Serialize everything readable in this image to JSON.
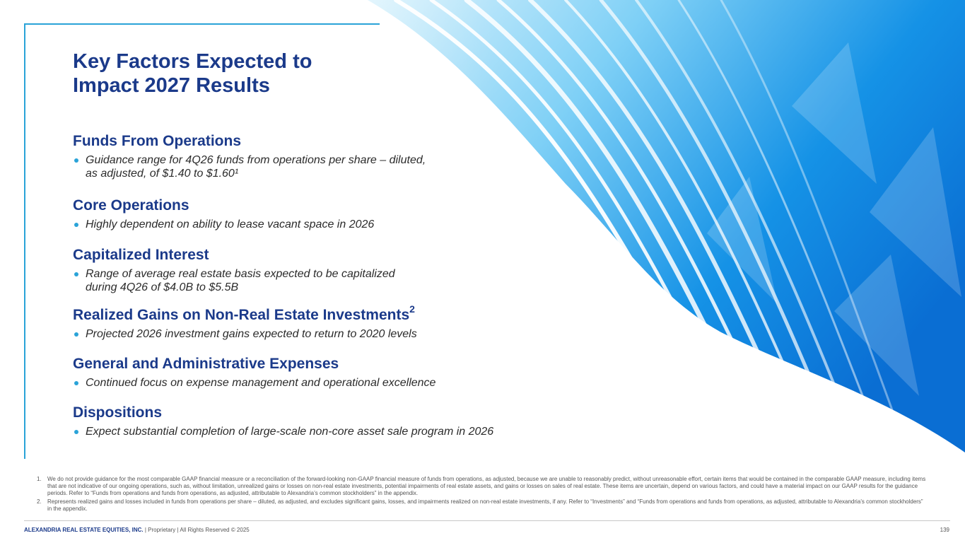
{
  "title": {
    "line1": "Key Factors Expected to",
    "line2": "Impact 2027 Results"
  },
  "sections": [
    {
      "heading": "Funds From Operations",
      "heading_sup": "",
      "bullet_line1": "Guidance range for 4Q26 funds from operations per share – diluted,",
      "bullet_line2": "as adjusted, of $1.40 to $1.60¹"
    },
    {
      "heading": "Core Operations",
      "heading_sup": "",
      "bullet_line1": "Highly dependent on ability to lease vacant space in 2026",
      "bullet_line2": ""
    },
    {
      "heading": "Capitalized Interest",
      "heading_sup": "",
      "bullet_line1": "Range of average real estate basis expected to be capitalized",
      "bullet_line2": "during 4Q26 of $4.0B to $5.5B"
    },
    {
      "heading": "Realized Gains on Non-Real Estate Investments",
      "heading_sup": "2",
      "bullet_line1": "Projected 2026 investment gains expected to return to 2020 levels",
      "bullet_line2": ""
    },
    {
      "heading": "General and Administrative Expenses",
      "heading_sup": "",
      "bullet_line1": "Continued focus on expense management and operational excellence",
      "bullet_line2": ""
    },
    {
      "heading": "Dispositions",
      "heading_sup": "",
      "bullet_line1": "Expect substantial completion of large-scale non-core asset sale program in 2026",
      "bullet_line2": ""
    }
  ],
  "footnotes": [
    {
      "num": "1.",
      "text": "We do not provide guidance for the most comparable GAAP financial measure or a reconciliation of the forward-looking non-GAAP financial measure of funds from operations, as adjusted, because we are unable to reasonably predict, without unreasonable effort, certain items that would be contained in the comparable GAAP measure, including items that are not indicative of our ongoing operations, such as, without limitation, unrealized gains or losses on non-real estate investments, potential impairments of real estate assets, and gains or losses on sales of real estate. These items are uncertain, depend on various factors, and could have a material impact on our GAAP results for the guidance periods. Refer to “Funds from operations and funds from operations, as adjusted, attributable to Alexandria’s common stockholders” in the appendix."
    },
    {
      "num": "2.",
      "text": "Represents realized gains and losses included in funds from operations per share – diluted, as adjusted, and excludes significant gains, losses, and impairments realized on non-real estate investments, if any. Refer to “Investments” and “Funds from operations and funds from operations, as adjusted, attributable to Alexandria’s common stockholders” in the appendix."
    }
  ],
  "footer": {
    "company": "ALEXANDRIA REAL ESTATE EQUITIES, INC.",
    "rest": " | Proprietary | All Rights Reserved © 2025",
    "page": "139"
  },
  "colors": {
    "heading": "#1b3a8a",
    "accent": "#2aa3d8",
    "art_deep": "#0b6fd0",
    "art_light": "#bfe9fb"
  }
}
